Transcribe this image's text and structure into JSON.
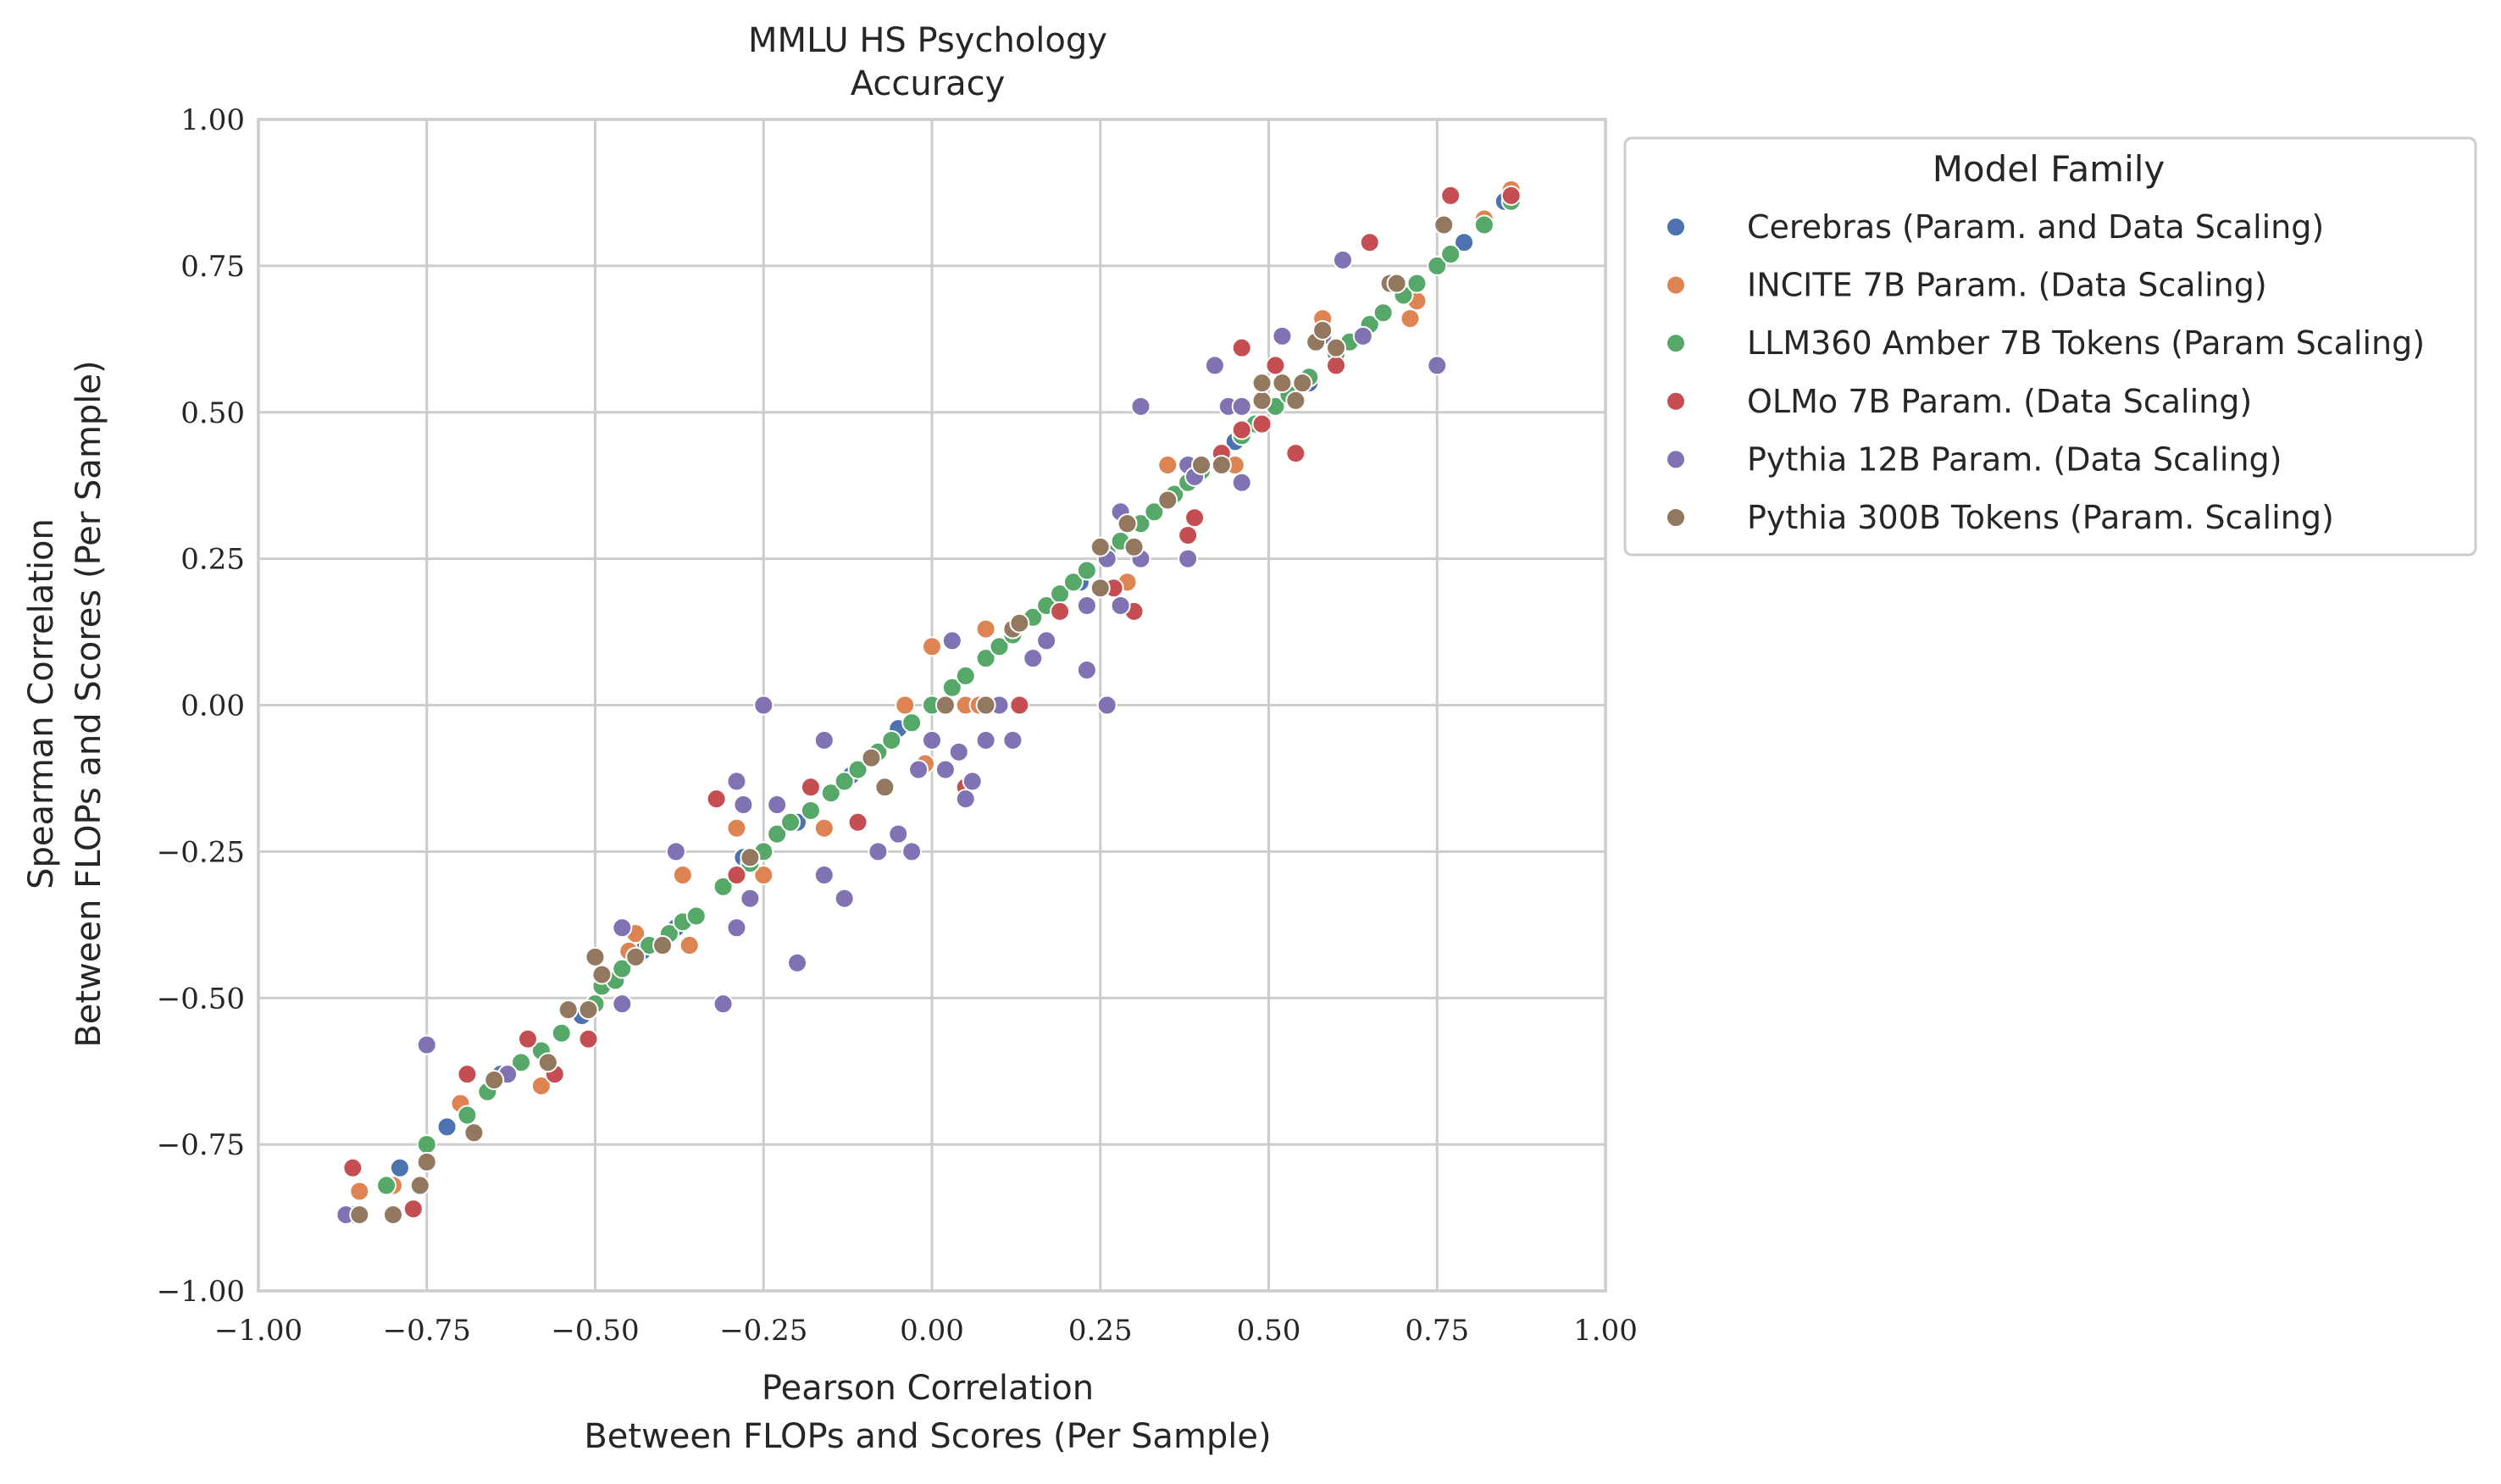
{
  "chart_data": {
    "type": "scatter",
    "title": [
      "MMLU HS Psychology",
      "Accuracy"
    ],
    "xlabel": [
      "Pearson Correlation",
      "Between FLOPs and Scores (Per Sample)"
    ],
    "ylabel": [
      "Spearman Correlation",
      "Between FLOPs and Scores (Per Sample)"
    ],
    "xlim": [
      -1.0,
      1.0
    ],
    "ylim": [
      -1.0,
      1.0
    ],
    "xticks": [
      "−1.00",
      "−0.75",
      "−0.50",
      "−0.25",
      "0.00",
      "0.25",
      "0.50",
      "0.75",
      "1.00"
    ],
    "yticks": [
      "1.00",
      "0.75",
      "0.50",
      "0.25",
      "0.00",
      "−0.25",
      "−0.50",
      "−0.75",
      "−1.00"
    ],
    "grid": true,
    "legend": {
      "title": "Model Family",
      "placement": "outside-right-top"
    },
    "series": [
      {
        "name": "Cerebras (Param. and Data Scaling)",
        "color": "#4c72b0",
        "points": [
          [
            -0.79,
            -0.79
          ],
          [
            -0.72,
            -0.72
          ],
          [
            -0.64,
            -0.63
          ],
          [
            -0.52,
            -0.53
          ],
          [
            -0.43,
            -0.42
          ],
          [
            -0.38,
            -0.38
          ],
          [
            -0.28,
            -0.26
          ],
          [
            -0.2,
            -0.2
          ],
          [
            -0.12,
            -0.12
          ],
          [
            -0.05,
            -0.04
          ],
          [
            0.03,
            0.03
          ],
          [
            0.1,
            0.1
          ],
          [
            0.22,
            0.21
          ],
          [
            0.33,
            0.33
          ],
          [
            0.45,
            0.45
          ],
          [
            0.56,
            0.55
          ],
          [
            0.67,
            0.67
          ],
          [
            0.77,
            0.77
          ],
          [
            0.79,
            0.79
          ],
          [
            0.85,
            0.86
          ]
        ]
      },
      {
        "name": "INCITE 7B Param. (Data Scaling)",
        "color": "#dd8452",
        "points": [
          [
            -0.85,
            -0.83
          ],
          [
            -0.8,
            -0.82
          ],
          [
            -0.7,
            -0.68
          ],
          [
            -0.58,
            -0.65
          ],
          [
            -0.45,
            -0.42
          ],
          [
            -0.44,
            -0.39
          ],
          [
            -0.37,
            -0.29
          ],
          [
            -0.36,
            -0.41
          ],
          [
            -0.29,
            -0.21
          ],
          [
            -0.25,
            -0.29
          ],
          [
            -0.16,
            -0.21
          ],
          [
            -0.04,
            0.0
          ],
          [
            -0.01,
            -0.1
          ],
          [
            0.0,
            0.1
          ],
          [
            0.05,
            0.0
          ],
          [
            0.08,
            0.13
          ],
          [
            0.07,
            0.0
          ],
          [
            0.29,
            0.21
          ],
          [
            0.35,
            0.41
          ],
          [
            0.45,
            0.41
          ],
          [
            0.58,
            0.66
          ],
          [
            0.71,
            0.66
          ],
          [
            0.72,
            0.69
          ],
          [
            0.82,
            0.83
          ],
          [
            0.86,
            0.88
          ]
        ]
      },
      {
        "name": "LLM360 Amber 7B Tokens (Param Scaling)",
        "color": "#55a868",
        "points": [
          [
            -0.86,
            -0.87
          ],
          [
            -0.81,
            -0.82
          ],
          [
            -0.75,
            -0.75
          ],
          [
            -0.69,
            -0.7
          ],
          [
            -0.66,
            -0.66
          ],
          [
            -0.63,
            -0.63
          ],
          [
            -0.61,
            -0.61
          ],
          [
            -0.58,
            -0.59
          ],
          [
            -0.55,
            -0.56
          ],
          [
            -0.5,
            -0.51
          ],
          [
            -0.49,
            -0.48
          ],
          [
            -0.47,
            -0.47
          ],
          [
            -0.46,
            -0.45
          ],
          [
            -0.44,
            -0.43
          ],
          [
            -0.42,
            -0.41
          ],
          [
            -0.39,
            -0.39
          ],
          [
            -0.37,
            -0.37
          ],
          [
            -0.35,
            -0.36
          ],
          [
            -0.31,
            -0.31
          ],
          [
            -0.29,
            -0.29
          ],
          [
            -0.27,
            -0.27
          ],
          [
            -0.25,
            -0.25
          ],
          [
            -0.23,
            -0.22
          ],
          [
            -0.21,
            -0.2
          ],
          [
            -0.18,
            -0.18
          ],
          [
            -0.15,
            -0.15
          ],
          [
            -0.13,
            -0.13
          ],
          [
            -0.11,
            -0.11
          ],
          [
            -0.08,
            -0.08
          ],
          [
            -0.06,
            -0.06
          ],
          [
            -0.03,
            -0.03
          ],
          [
            0.0,
            0.0
          ],
          [
            0.03,
            0.03
          ],
          [
            0.05,
            0.05
          ],
          [
            0.08,
            0.08
          ],
          [
            0.1,
            0.1
          ],
          [
            0.12,
            0.12
          ],
          [
            0.15,
            0.15
          ],
          [
            0.17,
            0.17
          ],
          [
            0.19,
            0.19
          ],
          [
            0.21,
            0.21
          ],
          [
            0.23,
            0.23
          ],
          [
            0.26,
            0.26
          ],
          [
            0.28,
            0.28
          ],
          [
            0.31,
            0.31
          ],
          [
            0.33,
            0.33
          ],
          [
            0.36,
            0.36
          ],
          [
            0.38,
            0.38
          ],
          [
            0.4,
            0.4
          ],
          [
            0.43,
            0.43
          ],
          [
            0.46,
            0.46
          ],
          [
            0.48,
            0.48
          ],
          [
            0.51,
            0.51
          ],
          [
            0.53,
            0.53
          ],
          [
            0.56,
            0.56
          ],
          [
            0.6,
            0.6
          ],
          [
            0.62,
            0.62
          ],
          [
            0.65,
            0.65
          ],
          [
            0.67,
            0.67
          ],
          [
            0.7,
            0.7
          ],
          [
            0.72,
            0.72
          ],
          [
            0.75,
            0.75
          ],
          [
            0.77,
            0.77
          ],
          [
            0.82,
            0.82
          ],
          [
            0.86,
            0.86
          ]
        ]
      },
      {
        "name": "OLMo 7B Param. (Data Scaling)",
        "color": "#c44e52",
        "points": [
          [
            -0.86,
            -0.79
          ],
          [
            -0.77,
            -0.86
          ],
          [
            -0.69,
            -0.63
          ],
          [
            -0.6,
            -0.57
          ],
          [
            -0.56,
            -0.63
          ],
          [
            -0.51,
            -0.57
          ],
          [
            -0.32,
            -0.16
          ],
          [
            -0.29,
            -0.29
          ],
          [
            -0.18,
            -0.14
          ],
          [
            -0.11,
            -0.2
          ],
          [
            0.05,
            -0.14
          ],
          [
            0.13,
            0.0
          ],
          [
            0.19,
            0.16
          ],
          [
            0.27,
            0.2
          ],
          [
            0.3,
            0.16
          ],
          [
            0.38,
            0.29
          ],
          [
            0.39,
            0.32
          ],
          [
            0.43,
            0.43
          ],
          [
            0.46,
            0.47
          ],
          [
            0.46,
            0.61
          ],
          [
            0.49,
            0.48
          ],
          [
            0.51,
            0.58
          ],
          [
            0.54,
            0.43
          ],
          [
            0.6,
            0.58
          ],
          [
            0.65,
            0.79
          ],
          [
            0.77,
            0.87
          ],
          [
            0.86,
            0.87
          ]
        ]
      },
      {
        "name": "Pythia 12B Param. (Data Scaling)",
        "color": "#8172b3",
        "points": [
          [
            -0.87,
            -0.87
          ],
          [
            -0.75,
            -0.58
          ],
          [
            -0.63,
            -0.63
          ],
          [
            -0.46,
            -0.38
          ],
          [
            -0.46,
            -0.51
          ],
          [
            -0.38,
            -0.25
          ],
          [
            -0.31,
            -0.51
          ],
          [
            -0.29,
            -0.38
          ],
          [
            -0.29,
            -0.13
          ],
          [
            -0.28,
            -0.17
          ],
          [
            -0.27,
            -0.33
          ],
          [
            -0.25,
            0.0
          ],
          [
            -0.23,
            -0.17
          ],
          [
            -0.2,
            -0.44
          ],
          [
            -0.16,
            -0.06
          ],
          [
            -0.16,
            -0.29
          ],
          [
            -0.13,
            -0.33
          ],
          [
            -0.08,
            -0.25
          ],
          [
            -0.05,
            -0.22
          ],
          [
            -0.03,
            -0.25
          ],
          [
            -0.02,
            -0.11
          ],
          [
            0.0,
            -0.06
          ],
          [
            0.02,
            -0.11
          ],
          [
            0.03,
            0.11
          ],
          [
            0.04,
            -0.08
          ],
          [
            0.05,
            -0.16
          ],
          [
            0.06,
            -0.13
          ],
          [
            0.08,
            -0.06
          ],
          [
            0.1,
            0.0
          ],
          [
            0.12,
            -0.06
          ],
          [
            0.15,
            0.08
          ],
          [
            0.17,
            0.11
          ],
          [
            0.23,
            0.17
          ],
          [
            0.23,
            0.06
          ],
          [
            0.26,
            0.25
          ],
          [
            0.26,
            0.0
          ],
          [
            0.28,
            0.33
          ],
          [
            0.28,
            0.17
          ],
          [
            0.31,
            0.51
          ],
          [
            0.31,
            0.25
          ],
          [
            0.38,
            0.25
          ],
          [
            0.38,
            0.41
          ],
          [
            0.39,
            0.39
          ],
          [
            0.42,
            0.58
          ],
          [
            0.44,
            0.51
          ],
          [
            0.46,
            0.51
          ],
          [
            0.46,
            0.38
          ],
          [
            0.52,
            0.63
          ],
          [
            0.58,
            0.63
          ],
          [
            0.61,
            0.76
          ],
          [
            0.64,
            0.63
          ],
          [
            0.75,
            0.58
          ]
        ]
      },
      {
        "name": "Pythia 300B Tokens (Param. Scaling)",
        "color": "#937860",
        "points": [
          [
            -0.85,
            -0.87
          ],
          [
            -0.8,
            -0.87
          ],
          [
            -0.76,
            -0.82
          ],
          [
            -0.75,
            -0.78
          ],
          [
            -0.68,
            -0.73
          ],
          [
            -0.65,
            -0.64
          ],
          [
            -0.57,
            -0.61
          ],
          [
            -0.54,
            -0.52
          ],
          [
            -0.51,
            -0.52
          ],
          [
            -0.5,
            -0.43
          ],
          [
            -0.49,
            -0.46
          ],
          [
            -0.44,
            -0.43
          ],
          [
            -0.4,
            -0.41
          ],
          [
            -0.27,
            -0.26
          ],
          [
            -0.09,
            -0.09
          ],
          [
            -0.07,
            -0.14
          ],
          [
            0.02,
            0.0
          ],
          [
            0.08,
            0.0
          ],
          [
            0.12,
            0.13
          ],
          [
            0.13,
            0.14
          ],
          [
            0.25,
            0.2
          ],
          [
            0.25,
            0.27
          ],
          [
            0.29,
            0.31
          ],
          [
            0.3,
            0.27
          ],
          [
            0.35,
            0.35
          ],
          [
            0.4,
            0.41
          ],
          [
            0.43,
            0.41
          ],
          [
            0.49,
            0.52
          ],
          [
            0.49,
            0.55
          ],
          [
            0.52,
            0.55
          ],
          [
            0.54,
            0.52
          ],
          [
            0.55,
            0.55
          ],
          [
            0.57,
            0.62
          ],
          [
            0.58,
            0.64
          ],
          [
            0.6,
            0.61
          ],
          [
            0.68,
            0.72
          ],
          [
            0.69,
            0.72
          ],
          [
            0.76,
            0.82
          ]
        ]
      }
    ]
  }
}
